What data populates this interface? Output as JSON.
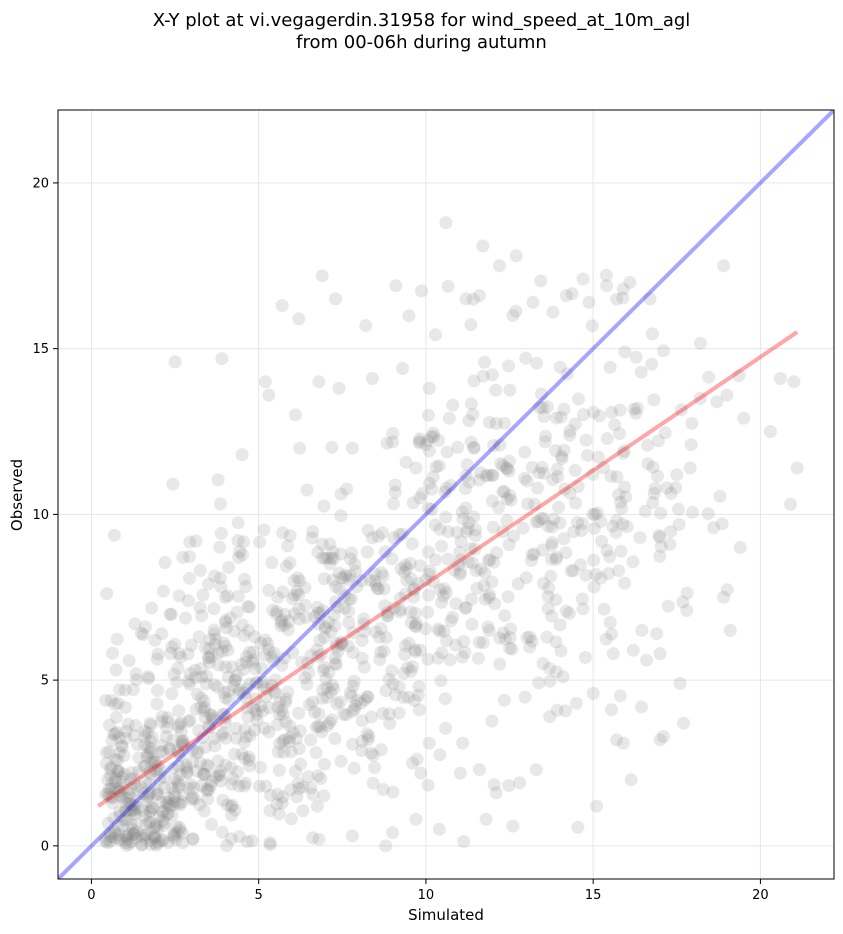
{
  "chart_data": {
    "type": "scatter",
    "title_line1": "X-Y plot at vi.vegagerdin.31958 for wind_speed_at_10m_agl",
    "title_line2": "from 00-06h during autumn",
    "xlabel": "Simulated",
    "ylabel": "Observed",
    "xlim": [
      -1.0,
      22.2
    ],
    "ylim": [
      -1.0,
      22.2
    ],
    "xticks": [
      0,
      5,
      10,
      15,
      20
    ],
    "yticks": [
      0,
      5,
      10,
      15,
      20
    ],
    "grid": true,
    "point_color": "#808080",
    "identity_line": {
      "color": "#0000ff",
      "x": [
        -1.0,
        22.2
      ],
      "y": [
        -1.0,
        22.2
      ]
    },
    "fit_line": {
      "color": "#ff0000",
      "x": [
        0.2,
        21.1
      ],
      "y": [
        1.2,
        15.5
      ]
    },
    "outlier_points": [
      [
        2.5,
        14.6
      ],
      [
        3.9,
        14.7
      ],
      [
        4.5,
        11.8
      ],
      [
        5.7,
        16.3
      ],
      [
        6.2,
        15.9
      ],
      [
        6.9,
        17.2
      ],
      [
        7.3,
        16.5
      ],
      [
        8.2,
        15.7
      ],
      [
        9.1,
        16.9
      ],
      [
        10.6,
        18.8
      ],
      [
        11.7,
        18.1
      ],
      [
        12.2,
        17.5
      ],
      [
        12.7,
        17.8
      ],
      [
        14.2,
        16.6
      ],
      [
        14.7,
        17.1
      ],
      [
        15.4,
        16.9
      ],
      [
        15.9,
        16.8
      ],
      [
        16.1,
        17.0
      ],
      [
        16.7,
        16.5
      ],
      [
        18.9,
        17.5
      ],
      [
        19.5,
        12.9
      ],
      [
        20.3,
        12.5
      ],
      [
        20.6,
        14.1
      ],
      [
        21.0,
        14.0
      ],
      [
        21.1,
        11.4
      ],
      [
        20.9,
        10.3
      ],
      [
        19.0,
        13.6
      ],
      [
        18.7,
        13.4
      ],
      [
        18.2,
        13.5
      ],
      [
        19.4,
        9.0
      ],
      [
        18.6,
        9.6
      ],
      [
        18.9,
        7.5
      ],
      [
        19.1,
        6.5
      ],
      [
        17.8,
        7.1
      ],
      [
        17.6,
        4.9
      ],
      [
        17.7,
        3.7
      ],
      [
        17.1,
        3.3
      ],
      [
        17.0,
        3.2
      ],
      [
        15.9,
        3.1
      ],
      [
        15.7,
        3.2
      ],
      [
        15.1,
        1.2
      ],
      [
        13.3,
        2.3
      ],
      [
        12.8,
        1.9
      ],
      [
        12.6,
        0.6
      ],
      [
        11.8,
        0.8
      ],
      [
        10.4,
        0.5
      ],
      [
        9.7,
        0.8
      ],
      [
        9.0,
        0.4
      ],
      [
        8.8,
        0.0
      ],
      [
        7.8,
        0.3
      ],
      [
        6.8,
        0.2
      ],
      [
        1.3,
        6.7
      ],
      [
        1.9,
        6.2
      ],
      [
        2.1,
        6.4
      ],
      [
        2.4,
        6.0
      ],
      [
        2.9,
        7.4
      ],
      [
        3.5,
        7.9
      ],
      [
        4.1,
        8.4
      ],
      [
        4.4,
        8.7
      ],
      [
        5.2,
        14.0
      ],
      [
        5.3,
        13.6
      ],
      [
        6.1,
        13.0
      ],
      [
        6.8,
        14.0
      ],
      [
        7.4,
        13.8
      ],
      [
        7.8,
        12.0
      ],
      [
        8.4,
        14.1
      ],
      [
        9.3,
        14.4
      ],
      [
        9.8,
        12.2
      ],
      [
        10.1,
        13.8
      ],
      [
        10.7,
        12.9
      ],
      [
        11.2,
        16.5
      ],
      [
        11.6,
        16.6
      ],
      [
        12.6,
        16.0
      ],
      [
        13.2,
        16.4
      ],
      [
        13.8,
        16.1
      ],
      [
        13.1,
        6.0
      ],
      [
        13.5,
        5.5
      ],
      [
        14.1,
        5.1
      ],
      [
        14.5,
        4.3
      ],
      [
        15.0,
        4.6
      ],
      [
        15.6,
        5.8
      ],
      [
        16.2,
        5.9
      ],
      [
        16.6,
        5.6
      ],
      [
        16.9,
        6.4
      ],
      [
        17.0,
        5.8
      ],
      [
        16.4,
        9.3
      ],
      [
        17.3,
        9.1
      ],
      [
        17.9,
        11.4
      ],
      [
        17.5,
        11.2
      ],
      [
        17.2,
        10.8
      ],
      [
        11.1,
        3.1
      ],
      [
        11.6,
        2.3
      ],
      [
        12.1,
        1.6
      ],
      [
        13.7,
        3.9
      ],
      [
        10.1,
        3.1
      ],
      [
        9.6,
        2.5
      ]
    ],
    "clusters": [
      {
        "n": 230,
        "cx": 1.5,
        "cy": 1.6,
        "sx": 1.0,
        "sy": 1.3
      },
      {
        "n": 330,
        "cx": 4.2,
        "cy": 4.2,
        "sx": 1.7,
        "sy": 2.0
      },
      {
        "n": 250,
        "cx": 7.3,
        "cy": 6.6,
        "sx": 1.9,
        "sy": 2.4
      },
      {
        "n": 190,
        "cx": 10.8,
        "cy": 8.5,
        "sx": 2.1,
        "sy": 3.0
      },
      {
        "n": 170,
        "cx": 13.6,
        "cy": 10.6,
        "sx": 1.9,
        "sy": 3.1
      },
      {
        "n": 50,
        "cx": 16.3,
        "cy": 11.4,
        "sx": 1.3,
        "sy": 2.5
      }
    ]
  }
}
